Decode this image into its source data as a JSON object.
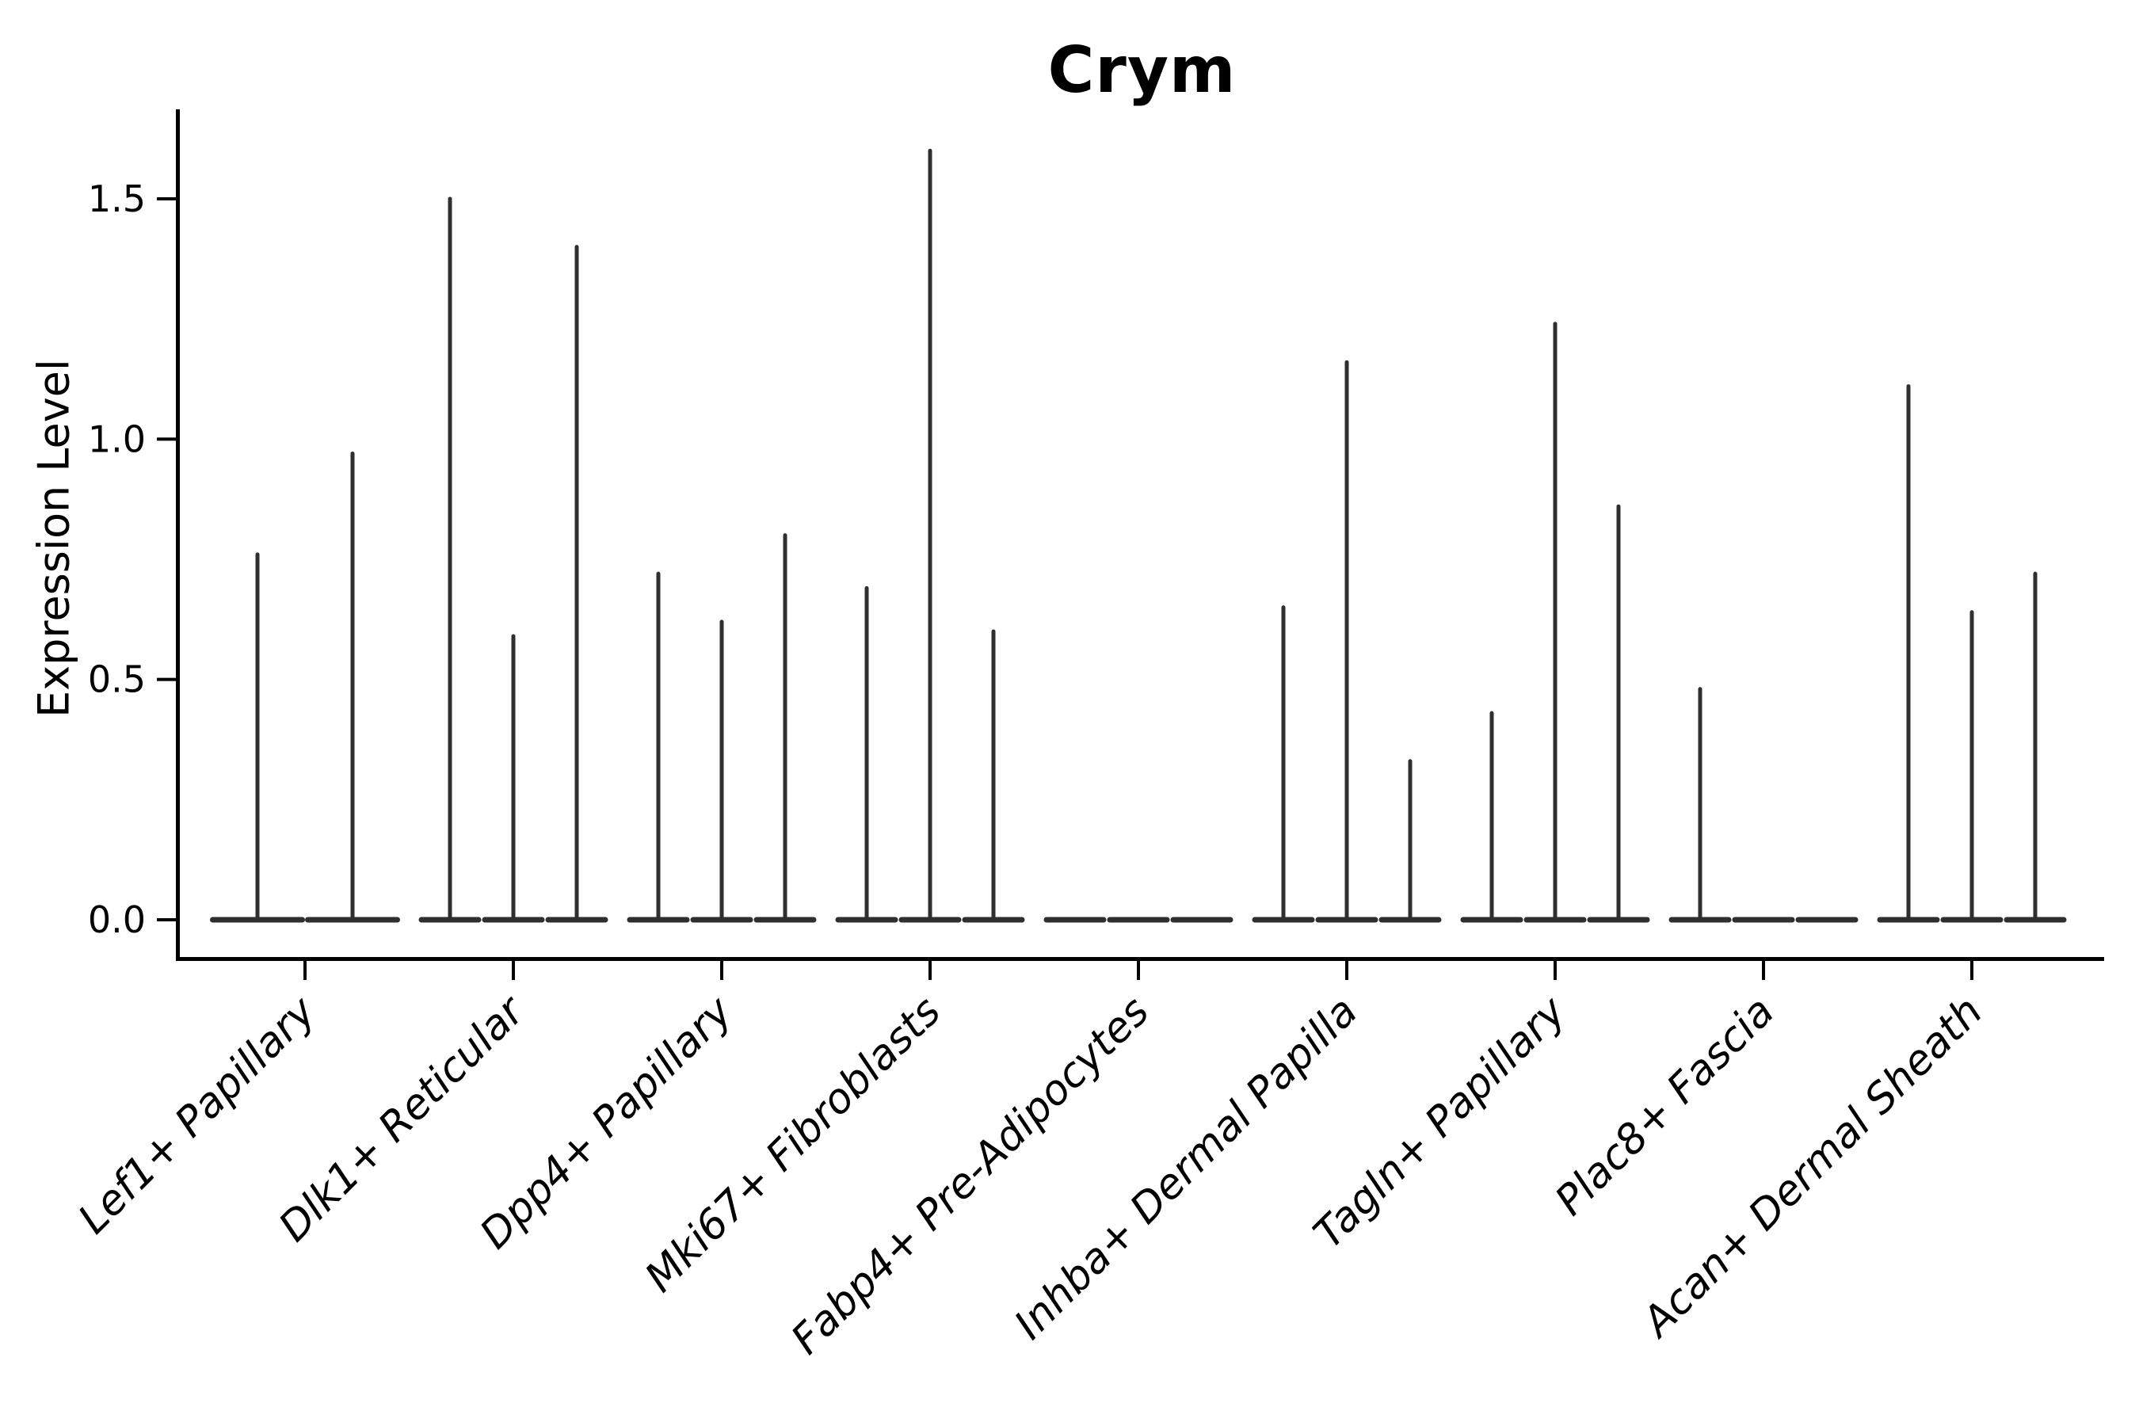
{
  "chart_data": {
    "type": "violin",
    "title": "Crym",
    "ylabel": "Expression Level",
    "xlabel": "",
    "categories": [
      "Lef1+ Papillary",
      "Dlk1+ Reticular",
      "Dpp4+ Papillary",
      "Mki67+ Fibroblasts",
      "Fabp4+ Pre-Adipocytes",
      "Inhba+ Dermal Papilla",
      "Tagln+ Papillary",
      "Plac8+ Fascia",
      "Acan+ Dermal Sheath"
    ],
    "violins_per_category": [
      2,
      3,
      3,
      3,
      3,
      3,
      3,
      3,
      3
    ],
    "violin_max_expression": [
      [
        0.76,
        0.97
      ],
      [
        1.5,
        0.59,
        1.4
      ],
      [
        0.72,
        0.62,
        0.8
      ],
      [
        0.69,
        1.6,
        0.6
      ],
      [
        0.0,
        0.0,
        0.0
      ],
      [
        0.65,
        1.16,
        0.33
      ],
      [
        0.43,
        1.24,
        0.86
      ],
      [
        0.48,
        0.0,
        0.0
      ],
      [
        1.11,
        0.64,
        0.72
      ]
    ],
    "yticks": [
      0.0,
      0.5,
      1.0,
      1.5
    ],
    "ylim": [
      -0.08,
      1.69
    ],
    "grid": false,
    "legend": "none",
    "x_label_rotation": 45,
    "x_label_style": "italic",
    "title_weight": "bold",
    "colors": {
      "violin": "#2f2f2f",
      "axis": "#000000",
      "text": "#000000",
      "background": "#ffffff"
    }
  }
}
